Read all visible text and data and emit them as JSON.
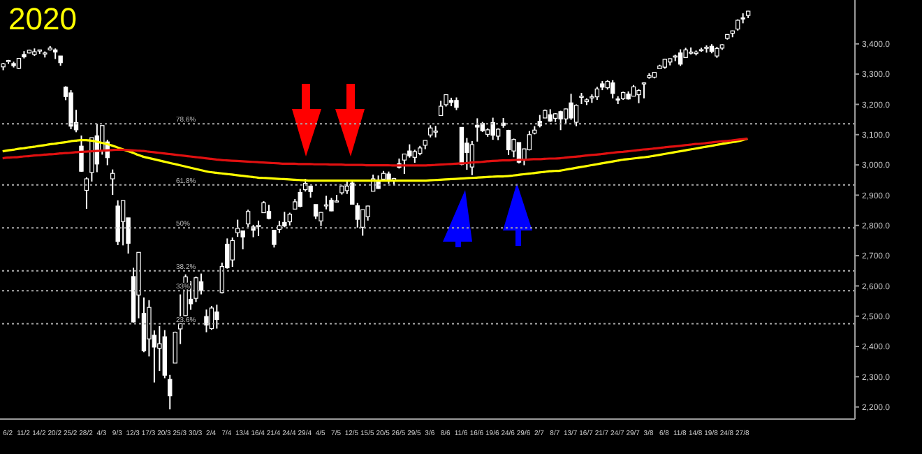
{
  "chart_data": {
    "type": "candlestick",
    "title": "2020",
    "color": "#ffffff",
    "marker": "none",
    "categories": [
      null,
      "6/2",
      null,
      null,
      "11/2",
      null,
      null,
      "14/2",
      null,
      null,
      "20/2",
      null,
      null,
      "25/2",
      null,
      null,
      "28/2",
      null,
      null,
      "4/3",
      null,
      null,
      "9/3",
      null,
      null,
      "12/3",
      null,
      null,
      "17/3",
      null,
      null,
      "20/3",
      null,
      null,
      "25/3",
      null,
      null,
      "30/3",
      null,
      null,
      "2/4",
      null,
      null,
      "7/4",
      null,
      null,
      "13/4",
      null,
      null,
      "16/4",
      null,
      null,
      "21/4",
      null,
      null,
      "24/4",
      null,
      null,
      "29/4",
      null,
      null,
      "4/5",
      null,
      null,
      "7/5",
      null,
      null,
      "12/5",
      null,
      null,
      "15/5",
      null,
      null,
      "20/5",
      null,
      null,
      "26/5",
      null,
      null,
      "29/5",
      null,
      null,
      "3/6",
      null,
      null,
      "8/6",
      null,
      null,
      "11/6",
      null,
      null,
      "16/6",
      null,
      null,
      "19/6",
      null,
      null,
      "24/6",
      null,
      null,
      "29/6",
      null,
      null,
      "2/7",
      null,
      null,
      "8/7",
      null,
      null,
      "13/7",
      null,
      null,
      "16/7",
      null,
      null,
      "21/7",
      null,
      null,
      "24/7",
      null,
      null,
      "29/7",
      null,
      null,
      "3/8",
      null,
      null,
      "6/8",
      null,
      null,
      "11/8",
      null,
      null,
      "14/8",
      null,
      null,
      "19/8",
      null,
      null,
      "24/8",
      null,
      null,
      "27/8",
      null
    ],
    "ohlc": [
      [
        3324,
        3337,
        3313,
        3334
      ],
      [
        3344,
        3347,
        3334,
        3345
      ],
      [
        3335,
        3341,
        3322,
        3328
      ],
      [
        3319,
        3352,
        3317,
        3352
      ],
      [
        3365,
        3376,
        3352,
        3357
      ],
      [
        3370,
        3381,
        3369,
        3379
      ],
      [
        3365,
        3385,
        3360,
        3374
      ],
      [
        3378,
        3380,
        3367,
        3380
      ],
      [
        3369,
        3375,
        3355,
        3370
      ],
      [
        3380,
        3393,
        3378,
        3386
      ],
      [
        3380,
        3385,
        3350,
        3373
      ],
      [
        3360,
        3360,
        3328,
        3338
      ],
      [
        3257,
        3260,
        3214,
        3226
      ],
      [
        3238,
        3247,
        3118,
        3128
      ],
      [
        3140,
        3182,
        3108,
        3116
      ],
      [
        3062,
        3097,
        2977,
        2979
      ],
      [
        2916,
        2959,
        2855,
        2954
      ],
      [
        2975,
        3090,
        2945,
        3090
      ],
      [
        3096,
        3136,
        2976,
        3003
      ],
      [
        3046,
        3130,
        3034,
        3130
      ],
      [
        3076,
        3083,
        2999,
        3024
      ],
      [
        2954,
        2985,
        2901,
        2972
      ],
      [
        2864,
        2883,
        2735,
        2747
      ],
      [
        2813,
        2882,
        2734,
        2882
      ],
      [
        2825,
        2825,
        2707,
        2741
      ],
      [
        2631,
        2660,
        2479,
        2481
      ],
      [
        2570,
        2711,
        2493,
        2711
      ],
      [
        2509,
        2562,
        2381,
        2386
      ],
      [
        2425,
        2553,
        2367,
        2529
      ],
      [
        2437,
        2453,
        2281,
        2398
      ],
      [
        2394,
        2467,
        2319,
        2409
      ],
      [
        2432,
        2454,
        2295,
        2305
      ],
      [
        2291,
        2306,
        2192,
        2237
      ],
      [
        2345,
        2449,
        2345,
        2447
      ],
      [
        2458,
        2572,
        2408,
        2476
      ],
      [
        2502,
        2638,
        2501,
        2630
      ],
      [
        2556,
        2616,
        2521,
        2541
      ],
      [
        2559,
        2631,
        2547,
        2627
      ],
      [
        2614,
        2641,
        2572,
        2585
      ],
      [
        2499,
        2522,
        2447,
        2471
      ],
      [
        2459,
        2534,
        2455,
        2527
      ],
      [
        2514,
        2538,
        2459,
        2489
      ],
      [
        2578,
        2677,
        2575,
        2664
      ],
      [
        2738,
        2757,
        2657,
        2660
      ],
      [
        2686,
        2760,
        2663,
        2750
      ],
      [
        2776,
        2819,
        2762,
        2790
      ],
      [
        2782,
        2782,
        2721,
        2762
      ],
      [
        2805,
        2852,
        2795,
        2846
      ],
      [
        2795,
        2802,
        2761,
        2784
      ],
      [
        2800,
        2816,
        2765,
        2800
      ],
      [
        2842,
        2880,
        2842,
        2875
      ],
      [
        2846,
        2868,
        2820,
        2823
      ],
      [
        2784,
        2785,
        2727,
        2737
      ],
      [
        2787,
        2815,
        2775,
        2799
      ],
      [
        2810,
        2845,
        2794,
        2798
      ],
      [
        2812,
        2842,
        2800,
        2837
      ],
      [
        2854,
        2887,
        2853,
        2878
      ],
      [
        2909,
        2921,
        2860,
        2863
      ],
      [
        2918,
        2954,
        2912,
        2939
      ],
      [
        2930,
        2930,
        2892,
        2912
      ],
      [
        2869,
        2869,
        2821,
        2831
      ],
      [
        2815,
        2844,
        2798,
        2843
      ],
      [
        2868,
        2898,
        2853,
        2868
      ],
      [
        2883,
        2891,
        2847,
        2848
      ],
      [
        2878,
        2901,
        2876,
        2881
      ],
      [
        2908,
        2932,
        2902,
        2930
      ],
      [
        2915,
        2945,
        2904,
        2930
      ],
      [
        2940,
        2945,
        2869,
        2870
      ],
      [
        2865,
        2874,
        2793,
        2820
      ],
      [
        2794,
        2852,
        2766,
        2852
      ],
      [
        2829,
        2865,
        2816,
        2864
      ],
      [
        2913,
        2968,
        2913,
        2954
      ],
      [
        2948,
        2965,
        2921,
        2922
      ],
      [
        2953,
        2980,
        2953,
        2972
      ],
      [
        2970,
        2978,
        2938,
        2949
      ],
      [
        2948,
        2957,
        2933,
        2955
      ],
      [
        3004,
        3021,
        2988,
        2992
      ],
      [
        3016,
        3036,
        2970,
        3036
      ],
      [
        3046,
        3068,
        3024,
        3030
      ],
      [
        3025,
        3050,
        3007,
        3044
      ],
      [
        3038,
        3063,
        3032,
        3056
      ],
      [
        3065,
        3081,
        3052,
        3081
      ],
      [
        3099,
        3131,
        3091,
        3122
      ],
      [
        3112,
        3129,
        3091,
        3112
      ],
      [
        3163,
        3212,
        3163,
        3194
      ],
      [
        3199,
        3232,
        3193,
        3232
      ],
      [
        3213,
        3222,
        3194,
        3207
      ],
      [
        3213,
        3223,
        3181,
        3190
      ],
      [
        3124,
        3124,
        2999,
        3002
      ],
      [
        3072,
        3089,
        2984,
        3041
      ],
      [
        2993,
        3079,
        2966,
        3067
      ],
      [
        3131,
        3154,
        3077,
        3125
      ],
      [
        3137,
        3142,
        3109,
        3113
      ],
      [
        3101,
        3121,
        3093,
        3116
      ],
      [
        3140,
        3156,
        3083,
        3098
      ],
      [
        3095,
        3121,
        3082,
        3118
      ],
      [
        3138,
        3155,
        3123,
        3131
      ],
      [
        3114,
        3116,
        3033,
        3050
      ],
      [
        3046,
        3087,
        3025,
        3084
      ],
      [
        3074,
        3074,
        3005,
        3009
      ],
      [
        3018,
        3054,
        2999,
        3053
      ],
      [
        3050,
        3112,
        3048,
        3100
      ],
      [
        3105,
        3128,
        3101,
        3115
      ],
      [
        3144,
        3165,
        3124,
        3130
      ],
      [
        3155,
        3183,
        3155,
        3180
      ],
      [
        3166,
        3184,
        3142,
        3145
      ],
      [
        3154,
        3171,
        3142,
        3169
      ],
      [
        3176,
        3179,
        3115,
        3152
      ],
      [
        3152,
        3186,
        3135,
        3185
      ],
      [
        3205,
        3235,
        3149,
        3155
      ],
      [
        3141,
        3200,
        3128,
        3197
      ],
      [
        3226,
        3238,
        3201,
        3227
      ],
      [
        3209,
        3220,
        3198,
        3215
      ],
      [
        3224,
        3233,
        3205,
        3225
      ],
      [
        3225,
        3258,
        3215,
        3251
      ],
      [
        3268,
        3277,
        3247,
        3257
      ],
      [
        3255,
        3280,
        3249,
        3276
      ],
      [
        3271,
        3280,
        3220,
        3236
      ],
      [
        3218,
        3227,
        3201,
        3216
      ],
      [
        3219,
        3242,
        3215,
        3239
      ],
      [
        3234,
        3243,
        3216,
        3218
      ],
      [
        3227,
        3264,
        3227,
        3258
      ],
      [
        3232,
        3250,
        3204,
        3246
      ],
      [
        3270,
        3273,
        3220,
        3271
      ],
      [
        3289,
        3303,
        3285,
        3295
      ],
      [
        3290,
        3306,
        3286,
        3306
      ],
      [
        3318,
        3331,
        3318,
        3327
      ],
      [
        3323,
        3351,
        3318,
        3349
      ],
      [
        3340,
        3352,
        3329,
        3351
      ],
      [
        3357,
        3364,
        3343,
        3360
      ],
      [
        3370,
        3382,
        3327,
        3333
      ],
      [
        3355,
        3387,
        3355,
        3380
      ],
      [
        3373,
        3388,
        3365,
        3373
      ],
      [
        3368,
        3378,
        3362,
        3373
      ],
      [
        3380,
        3387,
        3374,
        3381
      ],
      [
        3387,
        3395,
        3371,
        3389
      ],
      [
        3392,
        3399,
        3369,
        3375
      ],
      [
        3360,
        3390,
        3354,
        3385
      ],
      [
        3386,
        3399,
        3380,
        3397
      ],
      [
        3418,
        3432,
        3414,
        3431
      ],
      [
        3435,
        3444,
        3422,
        3443
      ],
      [
        3449,
        3481,
        3444,
        3478
      ],
      [
        3486,
        3501,
        3468,
        3484
      ],
      [
        3494,
        3509,
        3485,
        3508
      ]
    ],
    "series": [
      {
        "type": "line",
        "color": "#ffff00",
        "values": [
          3045,
          3048,
          3050,
          3053,
          3055,
          3058,
          3060,
          3063,
          3065,
          3068,
          3070,
          3073,
          3075,
          3078,
          3080,
          3082,
          3082,
          3080,
          3077,
          3073,
          3069,
          3064,
          3058,
          3052,
          3046,
          3040,
          3033,
          3027,
          3023,
          3019,
          3015,
          3011,
          3007,
          3003,
          2999,
          2995,
          2991,
          2987,
          2983,
          2979,
          2976,
          2974,
          2972,
          2970,
          2968,
          2966,
          2964,
          2962,
          2960,
          2958,
          2957,
          2956,
          2955,
          2954,
          2953,
          2952,
          2951,
          2950,
          2949,
          2948,
          2948,
          2948,
          2948,
          2948,
          2948,
          2948,
          2948,
          2948,
          2948,
          2948,
          2948,
          2948,
          2948,
          2948,
          2948,
          2948,
          2948,
          2948,
          2948,
          2948,
          2948,
          2948,
          2949,
          2950,
          2951,
          2952,
          2953,
          2954,
          2955,
          2956,
          2957,
          2958,
          2959,
          2960,
          2961,
          2962,
          2962,
          2963,
          2965,
          2967,
          2969,
          2971,
          2973,
          2975,
          2977,
          2979,
          2980,
          2981,
          2984,
          2987,
          2990,
          2993,
          2996,
          2999,
          3002,
          3005,
          3008,
          3011,
          3014,
          3017,
          3019,
          3021,
          3023,
          3025,
          3027,
          3030,
          3033,
          3036,
          3039,
          3042,
          3045,
          3048,
          3051,
          3054,
          3057,
          3060,
          3063,
          3066,
          3069,
          3072,
          3075,
          3078,
          3082,
          3087
        ]
      },
      {
        "type": "line",
        "color": "#e01010",
        "values": [
          3022,
          3024,
          3025,
          3026,
          3028,
          3029,
          3031,
          3032,
          3034,
          3035,
          3036,
          3038,
          3039,
          3040,
          3042,
          3043,
          3044,
          3045,
          3046,
          3047,
          3048,
          3049,
          3050,
          3050,
          3049,
          3048,
          3047,
          3046,
          3044,
          3042,
          3040,
          3038,
          3036,
          3034,
          3032,
          3030,
          3028,
          3026,
          3024,
          3022,
          3020,
          3018,
          3016,
          3015,
          3014,
          3013,
          3012,
          3011,
          3010,
          3009,
          3008,
          3007,
          3006,
          3005,
          3004,
          3004,
          3004,
          3003,
          3003,
          3003,
          3002,
          3002,
          3002,
          3001,
          3001,
          3001,
          3000,
          3000,
          3000,
          3000,
          2999,
          2999,
          2999,
          2999,
          2999,
          2998,
          2998,
          2998,
          2998,
          2998,
          2998,
          2998,
          2999,
          3000,
          3001,
          3002,
          3003,
          3004,
          3005,
          3006,
          3008,
          3009,
          3010,
          3012,
          3013,
          3014,
          3015,
          3015,
          3016,
          3017,
          3017,
          3018,
          3019,
          3019,
          3020,
          3021,
          3021,
          3022,
          3024,
          3026,
          3027,
          3029,
          3031,
          3033,
          3034,
          3036,
          3038,
          3040,
          3042,
          3043,
          3045,
          3047,
          3049,
          3051,
          3052,
          3054,
          3056,
          3058,
          3060,
          3061,
          3063,
          3065,
          3067,
          3069,
          3070,
          3072,
          3074,
          3076,
          3078,
          3079,
          3081,
          3083,
          3085,
          3087
        ]
      }
    ],
    "ylim": [
      2160,
      3545
    ],
    "yticks": [
      {
        "value": 2200,
        "label": "2,200.0"
      },
      {
        "value": 2300,
        "label": "2,300.0"
      },
      {
        "value": 2400,
        "label": "2,400.0"
      },
      {
        "value": 2500,
        "label": "2,500.0"
      },
      {
        "value": 2600,
        "label": "2,600.0"
      },
      {
        "value": 2700,
        "label": "2,700.0"
      },
      {
        "value": 2800,
        "label": "2,800.0"
      },
      {
        "value": 2900,
        "label": "2,900.0"
      },
      {
        "value": 3000,
        "label": "3,000.0"
      },
      {
        "value": 3100,
        "label": "3,100.0"
      },
      {
        "value": 3200,
        "label": "3,200.0"
      },
      {
        "value": 3300,
        "label": "3,300.0"
      },
      {
        "value": 3400,
        "label": "3,400.0"
      }
    ],
    "ref_lines": [
      {
        "axis": "y",
        "value": 3136,
        "color": "#aaaaaa",
        "line_style": "dotted"
      },
      {
        "axis": "y",
        "value": 2934,
        "color": "#aaaaaa",
        "line_style": "dotted"
      },
      {
        "axis": "y",
        "value": 2792,
        "color": "#aaaaaa",
        "line_style": "dotted"
      },
      {
        "axis": "y",
        "value": 2650,
        "color": "#aaaaaa",
        "line_style": "dotted"
      },
      {
        "axis": "y",
        "value": 2584,
        "color": "#aaaaaa",
        "line_style": "dotted"
      },
      {
        "axis": "y",
        "value": 2475,
        "color": "#aaaaaa",
        "line_style": "dotted"
      }
    ],
    "annotations": [
      {
        "text": "78.6%",
        "y": 3136
      },
      {
        "text": "61.8%",
        "y": 2934
      },
      {
        "text": "50%",
        "y": 2792
      },
      {
        "text": "38.2%",
        "y": 2650
      },
      {
        "text": "33%",
        "y": 2584
      },
      {
        "text": "23.6%",
        "y": 2475
      }
    ]
  }
}
